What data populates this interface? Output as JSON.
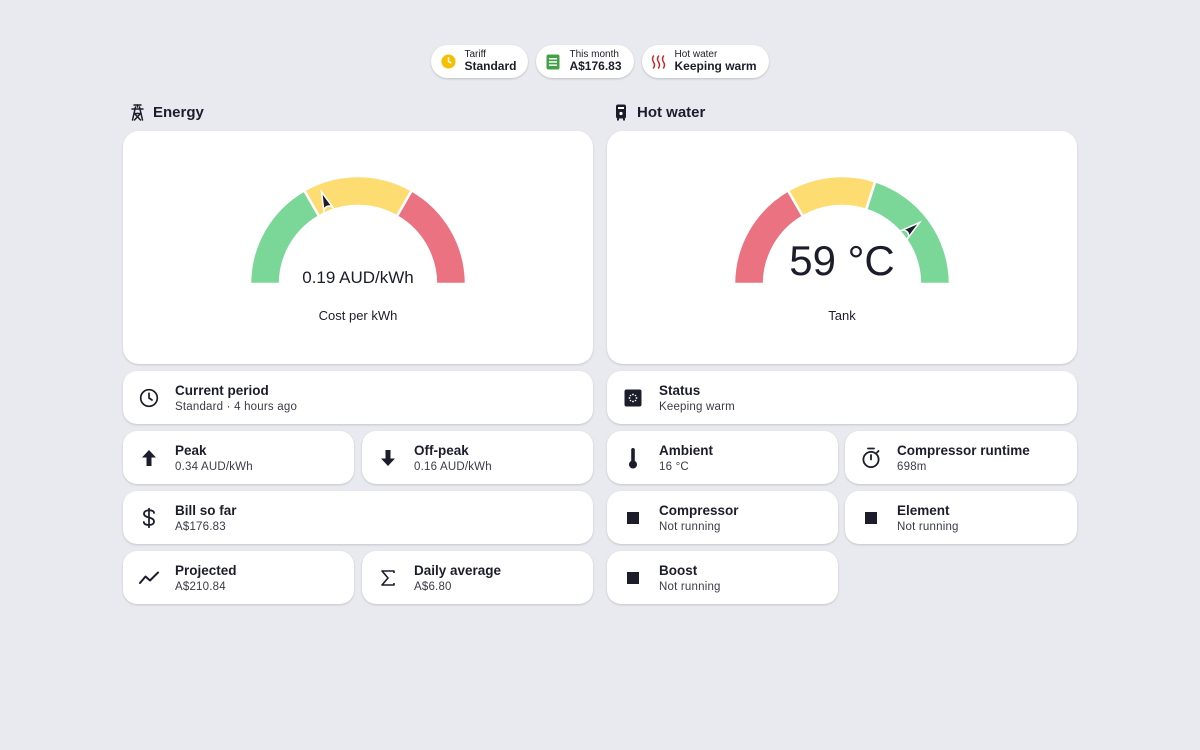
{
  "chips": [
    {
      "label": "Tariff",
      "value": "Standard",
      "icon": "tariff-clock-icon",
      "color": "#f5c000"
    },
    {
      "label": "This month",
      "value": "A$176.83",
      "icon": "bill-icon",
      "color": "#43a047"
    },
    {
      "label": "Hot water",
      "value": "Keeping warm",
      "icon": "heat-waves-icon",
      "color": "#c62828"
    }
  ],
  "energy": {
    "heading": "Energy",
    "icon": "power-pylon-icon",
    "gauge": {
      "value_text": "0.19 AUD/kWh",
      "caption": "Cost per kWh",
      "value": 0.19,
      "min": 0,
      "max": 0.5,
      "segments": [
        {
          "from": 0,
          "to": 0.167,
          "color": "#7ad797"
        },
        {
          "from": 0.167,
          "to": 0.333,
          "color": "#fddc72"
        },
        {
          "from": 0.333,
          "to": 0.5,
          "color": "#eb7281"
        }
      ]
    },
    "tiles": {
      "current_period": {
        "title": "Current period",
        "sub": "Standard · 4 hours ago",
        "icon": "clock-icon"
      },
      "peak": {
        "title": "Peak",
        "sub": "0.34 AUD/kWh",
        "icon": "arrow-up-icon"
      },
      "off_peak": {
        "title": "Off-peak",
        "sub": "0.16 AUD/kWh",
        "icon": "arrow-down-icon"
      },
      "bill": {
        "title": "Bill so far",
        "sub": "A$176.83",
        "icon": "dollar-icon"
      },
      "projected": {
        "title": "Projected",
        "sub": "A$210.84",
        "icon": "trend-icon"
      },
      "daily_avg": {
        "title": "Daily average",
        "sub": "A$6.80",
        "icon": "sigma-icon"
      }
    }
  },
  "hot_water": {
    "heading": "Hot water",
    "icon": "water-heater-icon",
    "gauge": {
      "value_text": "59 °C",
      "caption": "Tank",
      "value": 59,
      "min": 0,
      "max": 75,
      "segments": [
        {
          "from": 0,
          "to": 25,
          "color": "#eb7281"
        },
        {
          "from": 25,
          "to": 45,
          "color": "#fddc72"
        },
        {
          "from": 45,
          "to": 75,
          "color": "#7ad797"
        }
      ]
    },
    "tiles": {
      "status": {
        "title": "Status",
        "sub": "Keeping warm",
        "icon": "heater-status-icon"
      },
      "ambient": {
        "title": "Ambient",
        "sub": "16 °C",
        "icon": "thermometer-icon"
      },
      "compressor_runtime": {
        "title": "Compressor runtime",
        "sub": "698m",
        "icon": "timer-icon"
      },
      "compressor": {
        "title": "Compressor",
        "sub": "Not running",
        "icon": "stop-square-icon"
      },
      "element": {
        "title": "Element",
        "sub": "Not running",
        "icon": "stop-square-icon"
      },
      "boost": {
        "title": "Boost",
        "sub": "Not running",
        "icon": "stop-square-icon"
      }
    }
  },
  "colors": {
    "ink": "#1c1d2b",
    "background": "#e9eaef"
  }
}
